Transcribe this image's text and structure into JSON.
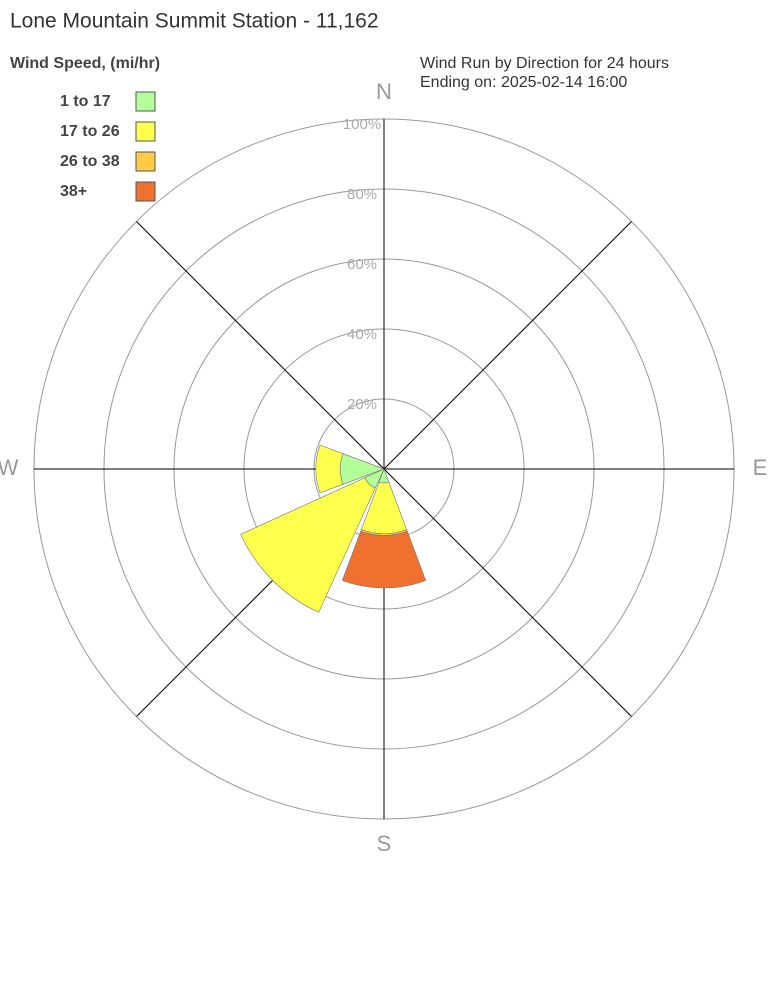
{
  "chart_data": {
    "type": "windrose",
    "title": "Lone Mountain Summit Station - 11,162",
    "legend_title": "Wind Speed, (mi/hr)",
    "subtitle": [
      "Wind Run by Direction for 24 hours",
      "Ending on: 2025-02-14 16:00"
    ],
    "categories": [
      "N",
      null,
      "E",
      null,
      "S",
      null,
      "W",
      null
    ],
    "series": [
      {
        "name": "1 to 17",
        "color": "#b3ff99",
        "values": [
          0,
          0,
          0,
          0,
          4,
          6,
          12.5,
          0
        ]
      },
      {
        "name": "17 to 26",
        "color": "#ffff4d",
        "values": [
          0,
          0,
          0,
          0,
          14.5,
          39,
          7,
          0
        ]
      },
      {
        "name": "26 to 38",
        "color": "#ffcc44",
        "values": [
          0,
          0,
          0,
          0,
          0.5,
          0,
          0,
          0
        ]
      },
      {
        "name": "38+",
        "color": "#f07030",
        "values": [
          0,
          0,
          0,
          0,
          15,
          0,
          0,
          0
        ]
      }
    ],
    "rlim": [
      0,
      100
    ],
    "rticks": [
      {
        "value": 20,
        "label": "20%"
      },
      {
        "value": 40,
        "label": "40%"
      },
      {
        "value": 60,
        "label": "60%"
      },
      {
        "value": 80,
        "label": "80%"
      },
      {
        "value": 100,
        "label": "100%"
      }
    ]
  }
}
